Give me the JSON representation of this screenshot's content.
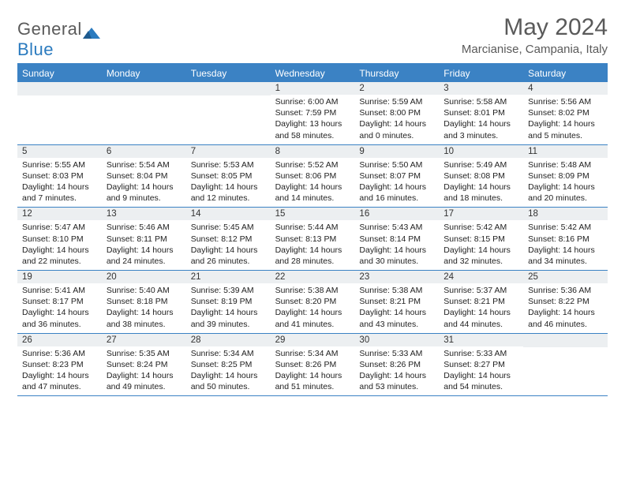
{
  "logo": {
    "text1": "General",
    "text2": "Blue"
  },
  "title": "May 2024",
  "location": "Marcianise, Campania, Italy",
  "weekdays": [
    "Sunday",
    "Monday",
    "Tuesday",
    "Wednesday",
    "Thursday",
    "Friday",
    "Saturday"
  ],
  "colors": {
    "header_bg": "#3b82c4",
    "header_text": "#ffffff",
    "daynum_bg": "#eceff1",
    "text": "#222222",
    "title_color": "#5a5a5a"
  },
  "weeks": [
    [
      {
        "day": "",
        "sunrise": "",
        "sunset": "",
        "daylight": ""
      },
      {
        "day": "",
        "sunrise": "",
        "sunset": "",
        "daylight": ""
      },
      {
        "day": "",
        "sunrise": "",
        "sunset": "",
        "daylight": ""
      },
      {
        "day": "1",
        "sunrise": "Sunrise: 6:00 AM",
        "sunset": "Sunset: 7:59 PM",
        "daylight": "Daylight: 13 hours and 58 minutes."
      },
      {
        "day": "2",
        "sunrise": "Sunrise: 5:59 AM",
        "sunset": "Sunset: 8:00 PM",
        "daylight": "Daylight: 14 hours and 0 minutes."
      },
      {
        "day": "3",
        "sunrise": "Sunrise: 5:58 AM",
        "sunset": "Sunset: 8:01 PM",
        "daylight": "Daylight: 14 hours and 3 minutes."
      },
      {
        "day": "4",
        "sunrise": "Sunrise: 5:56 AM",
        "sunset": "Sunset: 8:02 PM",
        "daylight": "Daylight: 14 hours and 5 minutes."
      }
    ],
    [
      {
        "day": "5",
        "sunrise": "Sunrise: 5:55 AM",
        "sunset": "Sunset: 8:03 PM",
        "daylight": "Daylight: 14 hours and 7 minutes."
      },
      {
        "day": "6",
        "sunrise": "Sunrise: 5:54 AM",
        "sunset": "Sunset: 8:04 PM",
        "daylight": "Daylight: 14 hours and 9 minutes."
      },
      {
        "day": "7",
        "sunrise": "Sunrise: 5:53 AM",
        "sunset": "Sunset: 8:05 PM",
        "daylight": "Daylight: 14 hours and 12 minutes."
      },
      {
        "day": "8",
        "sunrise": "Sunrise: 5:52 AM",
        "sunset": "Sunset: 8:06 PM",
        "daylight": "Daylight: 14 hours and 14 minutes."
      },
      {
        "day": "9",
        "sunrise": "Sunrise: 5:50 AM",
        "sunset": "Sunset: 8:07 PM",
        "daylight": "Daylight: 14 hours and 16 minutes."
      },
      {
        "day": "10",
        "sunrise": "Sunrise: 5:49 AM",
        "sunset": "Sunset: 8:08 PM",
        "daylight": "Daylight: 14 hours and 18 minutes."
      },
      {
        "day": "11",
        "sunrise": "Sunrise: 5:48 AM",
        "sunset": "Sunset: 8:09 PM",
        "daylight": "Daylight: 14 hours and 20 minutes."
      }
    ],
    [
      {
        "day": "12",
        "sunrise": "Sunrise: 5:47 AM",
        "sunset": "Sunset: 8:10 PM",
        "daylight": "Daylight: 14 hours and 22 minutes."
      },
      {
        "day": "13",
        "sunrise": "Sunrise: 5:46 AM",
        "sunset": "Sunset: 8:11 PM",
        "daylight": "Daylight: 14 hours and 24 minutes."
      },
      {
        "day": "14",
        "sunrise": "Sunrise: 5:45 AM",
        "sunset": "Sunset: 8:12 PM",
        "daylight": "Daylight: 14 hours and 26 minutes."
      },
      {
        "day": "15",
        "sunrise": "Sunrise: 5:44 AM",
        "sunset": "Sunset: 8:13 PM",
        "daylight": "Daylight: 14 hours and 28 minutes."
      },
      {
        "day": "16",
        "sunrise": "Sunrise: 5:43 AM",
        "sunset": "Sunset: 8:14 PM",
        "daylight": "Daylight: 14 hours and 30 minutes."
      },
      {
        "day": "17",
        "sunrise": "Sunrise: 5:42 AM",
        "sunset": "Sunset: 8:15 PM",
        "daylight": "Daylight: 14 hours and 32 minutes."
      },
      {
        "day": "18",
        "sunrise": "Sunrise: 5:42 AM",
        "sunset": "Sunset: 8:16 PM",
        "daylight": "Daylight: 14 hours and 34 minutes."
      }
    ],
    [
      {
        "day": "19",
        "sunrise": "Sunrise: 5:41 AM",
        "sunset": "Sunset: 8:17 PM",
        "daylight": "Daylight: 14 hours and 36 minutes."
      },
      {
        "day": "20",
        "sunrise": "Sunrise: 5:40 AM",
        "sunset": "Sunset: 8:18 PM",
        "daylight": "Daylight: 14 hours and 38 minutes."
      },
      {
        "day": "21",
        "sunrise": "Sunrise: 5:39 AM",
        "sunset": "Sunset: 8:19 PM",
        "daylight": "Daylight: 14 hours and 39 minutes."
      },
      {
        "day": "22",
        "sunrise": "Sunrise: 5:38 AM",
        "sunset": "Sunset: 8:20 PM",
        "daylight": "Daylight: 14 hours and 41 minutes."
      },
      {
        "day": "23",
        "sunrise": "Sunrise: 5:38 AM",
        "sunset": "Sunset: 8:21 PM",
        "daylight": "Daylight: 14 hours and 43 minutes."
      },
      {
        "day": "24",
        "sunrise": "Sunrise: 5:37 AM",
        "sunset": "Sunset: 8:21 PM",
        "daylight": "Daylight: 14 hours and 44 minutes."
      },
      {
        "day": "25",
        "sunrise": "Sunrise: 5:36 AM",
        "sunset": "Sunset: 8:22 PM",
        "daylight": "Daylight: 14 hours and 46 minutes."
      }
    ],
    [
      {
        "day": "26",
        "sunrise": "Sunrise: 5:36 AM",
        "sunset": "Sunset: 8:23 PM",
        "daylight": "Daylight: 14 hours and 47 minutes."
      },
      {
        "day": "27",
        "sunrise": "Sunrise: 5:35 AM",
        "sunset": "Sunset: 8:24 PM",
        "daylight": "Daylight: 14 hours and 49 minutes."
      },
      {
        "day": "28",
        "sunrise": "Sunrise: 5:34 AM",
        "sunset": "Sunset: 8:25 PM",
        "daylight": "Daylight: 14 hours and 50 minutes."
      },
      {
        "day": "29",
        "sunrise": "Sunrise: 5:34 AM",
        "sunset": "Sunset: 8:26 PM",
        "daylight": "Daylight: 14 hours and 51 minutes."
      },
      {
        "day": "30",
        "sunrise": "Sunrise: 5:33 AM",
        "sunset": "Sunset: 8:26 PM",
        "daylight": "Daylight: 14 hours and 53 minutes."
      },
      {
        "day": "31",
        "sunrise": "Sunrise: 5:33 AM",
        "sunset": "Sunset: 8:27 PM",
        "daylight": "Daylight: 14 hours and 54 minutes."
      },
      {
        "day": "",
        "sunrise": "",
        "sunset": "",
        "daylight": ""
      }
    ]
  ]
}
